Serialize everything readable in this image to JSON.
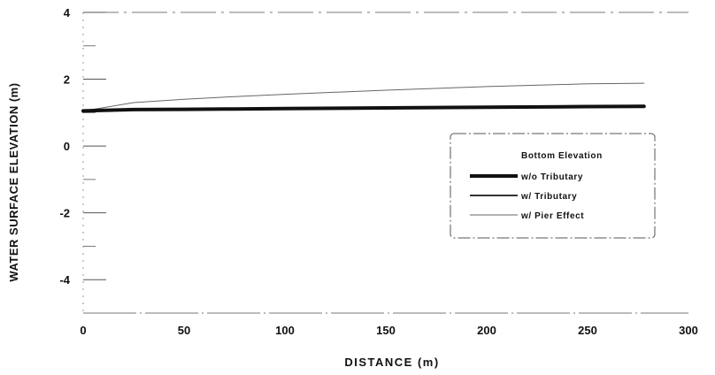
{
  "chart_data": {
    "type": "line",
    "xlabel": "DISTANCE (m)",
    "ylabel": "WATER SURFACE ELEVATION (m)",
    "xlim": [
      0,
      300
    ],
    "ylim": [
      -5,
      4
    ],
    "xticks": [
      "0",
      "50",
      "100",
      "150",
      "200",
      "250",
      "300"
    ],
    "yticks": [
      "4",
      "2",
      "0",
      "-2",
      "-4"
    ],
    "legend_position": "right",
    "legend_header": "Bottom Elevation",
    "series": [
      {
        "name": "w/o Tributary",
        "style": "thick",
        "color": "#111111",
        "x": [
          0,
          10,
          25,
          50,
          75,
          100,
          150,
          200,
          250,
          278
        ],
        "y": [
          1.05,
          1.07,
          1.09,
          1.1,
          1.11,
          1.12,
          1.14,
          1.16,
          1.18,
          1.19
        ]
      },
      {
        "name": "w/ Tributary",
        "style": "medium",
        "color": "#333333",
        "x": [
          0,
          10,
          25,
          50,
          75,
          100,
          150,
          200,
          250,
          278
        ],
        "y": [
          1.05,
          1.07,
          1.09,
          1.1,
          1.11,
          1.12,
          1.15,
          1.18,
          1.2,
          1.21
        ]
      },
      {
        "name": "w/ Pier Effect",
        "style": "thin",
        "color": "#666666",
        "x": [
          0,
          10,
          25,
          50,
          75,
          100,
          150,
          200,
          250,
          278
        ],
        "y": [
          1.05,
          1.15,
          1.3,
          1.4,
          1.48,
          1.55,
          1.67,
          1.78,
          1.86,
          1.88
        ]
      }
    ]
  }
}
